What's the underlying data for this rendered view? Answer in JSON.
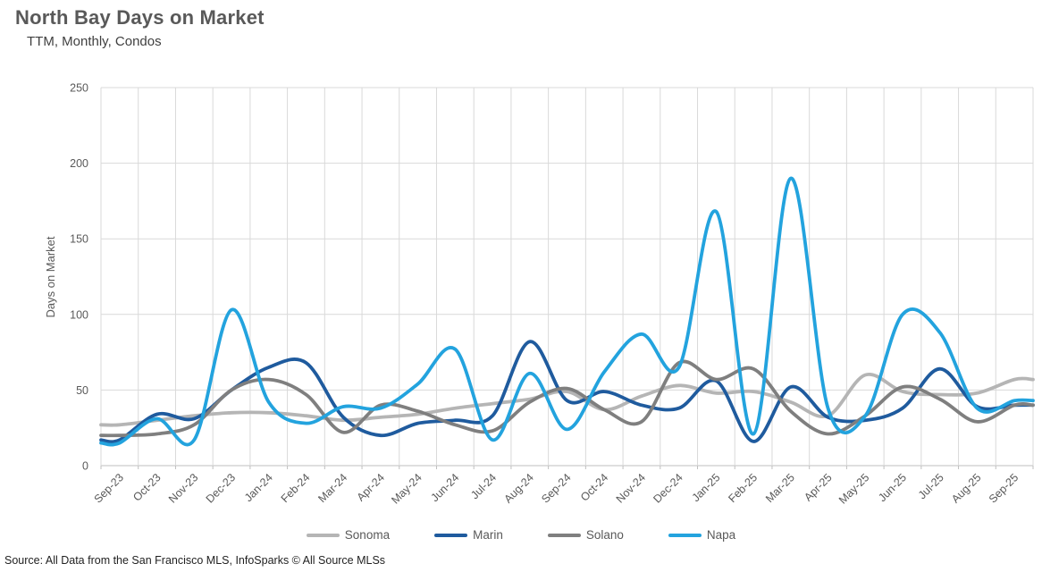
{
  "header": {
    "title": "North Bay Days on Market",
    "subtitle": "TTM, Monthly, Condos"
  },
  "chart_data": {
    "type": "line",
    "title": "North Bay Days on Market",
    "subtitle": "TTM, Monthly, Condos",
    "ylabel": "Days on Market",
    "xlabel": "",
    "ylim": [
      0,
      250
    ],
    "yticks": [
      0,
      50,
      100,
      150,
      200,
      250
    ],
    "grid": true,
    "legend_position": "bottom",
    "smooth_lines": true,
    "gridline_color": "#d9d9d9",
    "axis_text_color": "#595959",
    "categories": [
      "Sep-23",
      "Oct-23",
      "Nov-23",
      "Dec-23",
      "Jan-24",
      "Feb-24",
      "Mar-24",
      "Apr-24",
      "May-24",
      "Jun-24",
      "Jul-24",
      "Aug-24",
      "Sep-24",
      "Oct-24",
      "Nov-24",
      "Dec-24",
      "Jan-25",
      "Feb-25",
      "Mar-25",
      "Apr-25",
      "May-25",
      "Jun-25",
      "Jul-25",
      "Aug-25",
      "Sep-25"
    ],
    "series": [
      {
        "name": "Sonoma",
        "color": "#b5b5b5",
        "values": [
          27,
          30,
          33,
          35,
          35,
          33,
          30,
          32,
          34,
          38,
          41,
          44,
          49,
          37,
          46,
          53,
          48,
          49,
          42,
          33,
          60,
          49,
          47,
          48,
          57
        ]
      },
      {
        "name": "Marin",
        "color": "#1f5b9e",
        "values": [
          17,
          34,
          31,
          50,
          65,
          68,
          32,
          20,
          28,
          30,
          33,
          82,
          43,
          49,
          40,
          38,
          56,
          16,
          52,
          32,
          30,
          38,
          64,
          39,
          40
        ]
      },
      {
        "name": "Solano",
        "color": "#7f7f7f",
        "values": [
          20,
          21,
          27,
          50,
          57,
          47,
          22,
          40,
          36,
          27,
          23,
          42,
          51,
          37,
          29,
          68,
          57,
          64,
          36,
          21,
          33,
          52,
          44,
          29,
          40
        ]
      },
      {
        "name": "Napa",
        "color": "#23a3de",
        "values": [
          15,
          31,
          17,
          103,
          42,
          28,
          39,
          38,
          54,
          77,
          17,
          61,
          24,
          62,
          87,
          65,
          168,
          21,
          190,
          38,
          33,
          100,
          88,
          38,
          43
        ]
      }
    ]
  },
  "footer": {
    "source": "Source: All Data from the San Francisco MLS, InfoSparks © All Source MLSs"
  }
}
